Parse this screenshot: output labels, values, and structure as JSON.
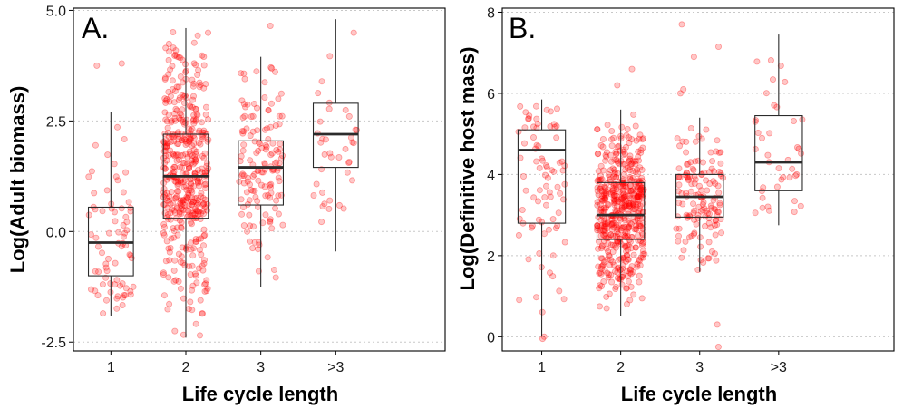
{
  "figure": {
    "point_color": "#ff0000",
    "panels": [
      {
        "tag": "A.",
        "xlabel": "Life cycle length",
        "ylabel": "Log(Adult biomass)"
      },
      {
        "tag": "B.",
        "xlabel": "Life cycle length",
        "ylabel": "Log(Definitive host mass)"
      }
    ]
  },
  "chart_data": [
    {
      "type": "box",
      "title": "A.",
      "xlabel": "Life cycle length",
      "ylabel": "Log(Adult biomass)",
      "categories": [
        "1",
        "2",
        "3",
        ">3"
      ],
      "ylim": [
        -2.7,
        5.05
      ],
      "yticks": [
        -2.5,
        0,
        2.5,
        5
      ],
      "ytick_labels": [
        "-2.5",
        "0.0",
        "2.5",
        "5.0"
      ],
      "grid": "horizontal-dotted",
      "legend": "none",
      "boxes": [
        {
          "category": "1",
          "min": -1.9,
          "q1": -1.0,
          "median": -0.25,
          "q3": 0.55,
          "max": 2.7,
          "n_points": 75,
          "outliers": [
            3.8,
            3.75
          ]
        },
        {
          "category": "2",
          "min": -2.4,
          "q1": 0.3,
          "median": 1.25,
          "q3": 2.2,
          "max": 4.6,
          "n_points": 460,
          "outliers": [
            -2.35,
            -2.25
          ]
        },
        {
          "category": "3",
          "min": -1.25,
          "q1": 0.6,
          "median": 1.45,
          "q3": 2.05,
          "max": 3.95,
          "n_points": 140,
          "outliers": [
            4.65
          ]
        },
        {
          "category": ">3",
          "min": -0.45,
          "q1": 1.45,
          "median": 2.2,
          "q3": 2.9,
          "max": 4.8,
          "n_points": 38,
          "outliers": []
        }
      ]
    },
    {
      "type": "box",
      "title": "B.",
      "xlabel": "Life cycle length",
      "ylabel": "Log(Definitive host mass)",
      "categories": [
        "1",
        "2",
        "3",
        ">3"
      ],
      "ylim": [
        -0.35,
        8.1
      ],
      "yticks": [
        0,
        2,
        4,
        6,
        8
      ],
      "ytick_labels": [
        "0",
        "2",
        "4",
        "6",
        "8"
      ],
      "grid": "horizontal-dotted",
      "legend": "none",
      "boxes": [
        {
          "category": "1",
          "min": 0.0,
          "q1": 2.8,
          "median": 4.6,
          "q3": 5.1,
          "max": 5.85,
          "n_points": 80,
          "outliers": [
            0.0,
            -0.05
          ]
        },
        {
          "category": "2",
          "min": 0.5,
          "q1": 2.4,
          "median": 3.0,
          "q3": 3.8,
          "max": 5.6,
          "n_points": 520,
          "outliers": [
            6.6,
            6.2
          ]
        },
        {
          "category": "3",
          "min": 1.6,
          "q1": 2.95,
          "median": 3.45,
          "q3": 4.0,
          "max": 5.4,
          "n_points": 140,
          "outliers": [
            7.7,
            7.15,
            6.9,
            6.1,
            6.0,
            1.65,
            0.3,
            -0.25
          ]
        },
        {
          "category": ">3",
          "min": 2.75,
          "q1": 3.6,
          "median": 4.3,
          "q3": 5.45,
          "max": 7.45,
          "n_points": 40,
          "outliers": []
        }
      ]
    }
  ]
}
